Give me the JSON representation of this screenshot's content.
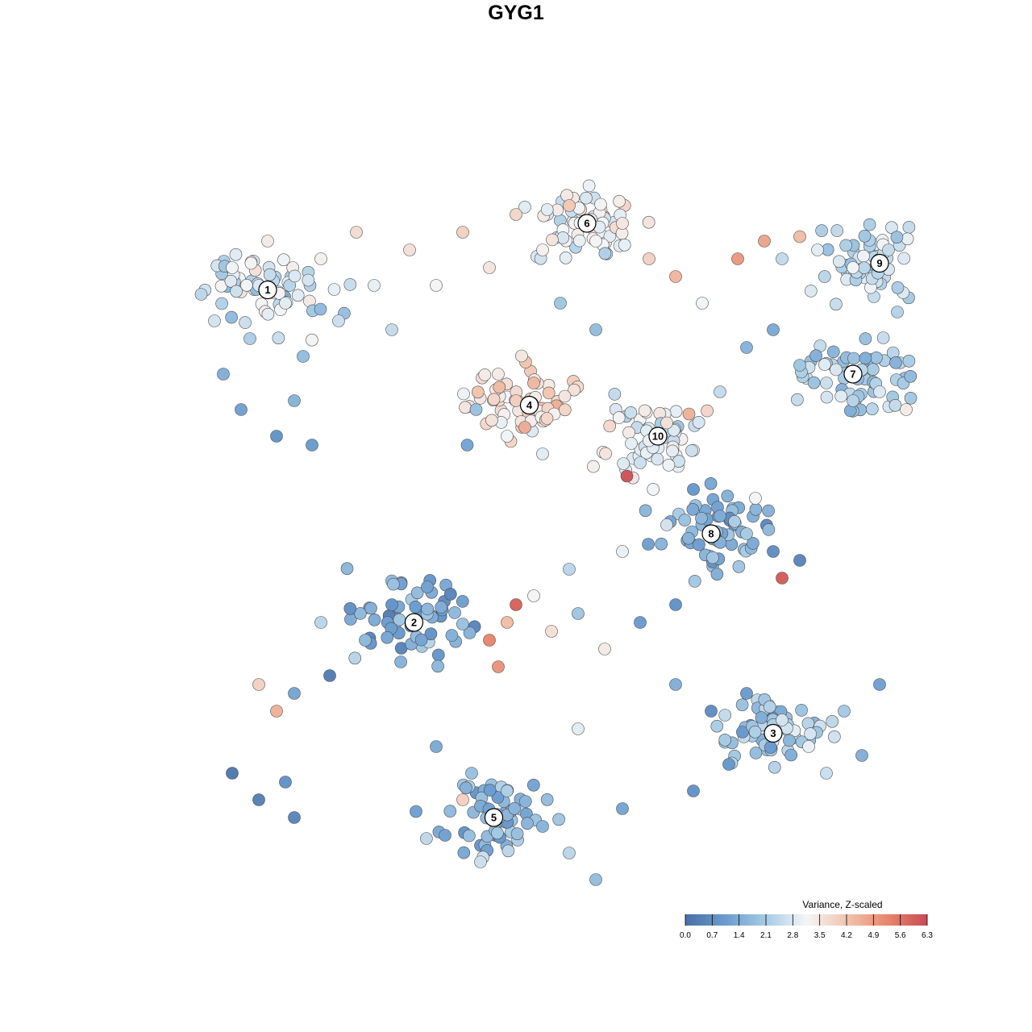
{
  "chart_data": {
    "type": "scatter",
    "title": "GYG1",
    "subtitle": "",
    "xlabel": "",
    "ylabel": "",
    "grid": false,
    "legend": {
      "title": "Variance, Z-scaled",
      "placement": "bottom-right",
      "ticks": [
        "0.0",
        "0.7",
        "1.4",
        "2.1",
        "2.8",
        "3.5",
        "4.2",
        "4.9",
        "5.6",
        "6.3"
      ],
      "range": [
        0.0,
        6.3
      ],
      "colors": [
        "#4a6fa5",
        "#6b9ccf",
        "#a7cbe4",
        "#f4f6f8",
        "#f2c4ae",
        "#e8876f",
        "#c94a55"
      ]
    },
    "clusters": [
      {
        "label": "1",
        "x": -2.8,
        "y": 2.55,
        "mean": 2.6
      },
      {
        "label": "2",
        "x": -1.15,
        "y": -1.2,
        "mean": 1.4
      },
      {
        "label": "3",
        "x": 2.9,
        "y": -2.45,
        "mean": 2.0
      },
      {
        "label": "4",
        "x": 0.15,
        "y": 1.25,
        "mean": 3.6
      },
      {
        "label": "5",
        "x": -0.25,
        "y": -3.4,
        "mean": 1.7
      },
      {
        "label": "6",
        "x": 0.8,
        "y": 3.3,
        "mean": 3.0
      },
      {
        "label": "7",
        "x": 3.8,
        "y": 1.6,
        "mean": 2.2
      },
      {
        "label": "8",
        "x": 2.2,
        "y": -0.2,
        "mean": 1.6
      },
      {
        "label": "9",
        "x": 4.1,
        "y": 2.85,
        "mean": 2.4
      },
      {
        "label": "10",
        "x": 1.6,
        "y": 0.9,
        "mean": 2.9
      }
    ],
    "points": [
      {
        "x": -3.55,
        "y": 2.5,
        "v": 2.4
      },
      {
        "x": -3.4,
        "y": 2.2,
        "v": 2.7
      },
      {
        "x": -3.2,
        "y": 2.8,
        "v": 3.1
      },
      {
        "x": -3.0,
        "y": 2.0,
        "v": 2.2
      },
      {
        "x": -2.8,
        "y": 3.1,
        "v": 3.4
      },
      {
        "x": -2.6,
        "y": 2.4,
        "v": 2.9
      },
      {
        "x": -2.4,
        "y": 1.8,
        "v": 1.8
      },
      {
        "x": -2.2,
        "y": 2.9,
        "v": 3.3
      },
      {
        "x": -2.0,
        "y": 2.2,
        "v": 2.6
      },
      {
        "x": -1.8,
        "y": 3.2,
        "v": 3.7
      },
      {
        "x": -1.6,
        "y": 2.6,
        "v": 3.0
      },
      {
        "x": -3.3,
        "y": 1.6,
        "v": 1.5
      },
      {
        "x": -3.1,
        "y": 1.2,
        "v": 1.2
      },
      {
        "x": -2.7,
        "y": 0.9,
        "v": 0.9
      },
      {
        "x": -2.5,
        "y": 1.3,
        "v": 1.6
      },
      {
        "x": -2.3,
        "y": 0.8,
        "v": 1.1
      },
      {
        "x": -2.9,
        "y": 2.6,
        "v": 2.8
      },
      {
        "x": -1.4,
        "y": 2.1,
        "v": 2.5
      },
      {
        "x": -1.2,
        "y": 3.0,
        "v": 3.6
      },
      {
        "x": -0.9,
        "y": 2.6,
        "v": 3.2
      },
      {
        "x": -0.6,
        "y": 3.2,
        "v": 3.9
      },
      {
        "x": -0.3,
        "y": 2.8,
        "v": 3.5
      },
      {
        "x": 0.0,
        "y": 3.4,
        "v": 3.8
      },
      {
        "x": 0.3,
        "y": 3.0,
        "v": 3.3
      },
      {
        "x": 0.6,
        "y": 3.5,
        "v": 4.1
      },
      {
        "x": 0.9,
        "y": 3.1,
        "v": 3.2
      },
      {
        "x": 1.2,
        "y": 3.3,
        "v": 3.5
      },
      {
        "x": 1.5,
        "y": 2.9,
        "v": 3.9
      },
      {
        "x": 1.8,
        "y": 2.7,
        "v": 4.4
      },
      {
        "x": 2.1,
        "y": 2.4,
        "v": 3.1
      },
      {
        "x": 0.5,
        "y": 2.4,
        "v": 2.0
      },
      {
        "x": 0.9,
        "y": 2.1,
        "v": 1.8
      },
      {
        "x": -0.2,
        "y": 1.6,
        "v": 3.4
      },
      {
        "x": 0.0,
        "y": 1.3,
        "v": 4.0
      },
      {
        "x": 0.2,
        "y": 1.5,
        "v": 4.4
      },
      {
        "x": 0.35,
        "y": 1.1,
        "v": 3.8
      },
      {
        "x": -0.1,
        "y": 0.9,
        "v": 3.1
      },
      {
        "x": 0.3,
        "y": 0.7,
        "v": 2.9
      },
      {
        "x": -0.45,
        "y": 1.2,
        "v": 1.9
      },
      {
        "x": -0.55,
        "y": 0.8,
        "v": 1.3
      },
      {
        "x": 0.55,
        "y": 1.35,
        "v": 3.5
      },
      {
        "x": 0.1,
        "y": 1.0,
        "v": 4.6
      },
      {
        "x": 1.5,
        "y": 0.85,
        "v": 3.0
      },
      {
        "x": 1.7,
        "y": 1.05,
        "v": 3.6
      },
      {
        "x": 1.4,
        "y": 0.6,
        "v": 2.6
      },
      {
        "x": 1.25,
        "y": 0.45,
        "v": 6.1
      },
      {
        "x": 1.95,
        "y": 1.15,
        "v": 4.5
      },
      {
        "x": 2.3,
        "y": 1.4,
        "v": 2.5
      },
      {
        "x": 2.6,
        "y": 1.9,
        "v": 1.6
      },
      {
        "x": 2.9,
        "y": 2.1,
        "v": 1.4
      },
      {
        "x": 3.2,
        "y": 1.7,
        "v": 2.0
      },
      {
        "x": 3.5,
        "y": 1.5,
        "v": 2.6
      },
      {
        "x": 3.8,
        "y": 1.3,
        "v": 2.3
      },
      {
        "x": 4.1,
        "y": 1.4,
        "v": 2.8
      },
      {
        "x": 4.4,
        "y": 1.2,
        "v": 3.4
      },
      {
        "x": 4.6,
        "y": 1.0,
        "v": 4.0
      },
      {
        "x": 3.0,
        "y": 2.9,
        "v": 2.5
      },
      {
        "x": 3.4,
        "y": 3.0,
        "v": 2.9
      },
      {
        "x": 3.8,
        "y": 2.8,
        "v": 3.1
      },
      {
        "x": 4.2,
        "y": 3.0,
        "v": 2.5
      },
      {
        "x": 4.5,
        "y": 2.7,
        "v": 2.1
      },
      {
        "x": 4.3,
        "y": 2.3,
        "v": 2.3
      },
      {
        "x": 2.8,
        "y": 3.1,
        "v": 4.7
      },
      {
        "x": 2.5,
        "y": 2.9,
        "v": 4.9
      },
      {
        "x": 3.2,
        "y": 3.15,
        "v": 4.3
      },
      {
        "x": 2.0,
        "y": 0.3,
        "v": 1.0
      },
      {
        "x": 2.3,
        "y": 0.0,
        "v": 1.4
      },
      {
        "x": 2.6,
        "y": -0.2,
        "v": 2.1
      },
      {
        "x": 2.9,
        "y": -0.4,
        "v": 0.8
      },
      {
        "x": 3.2,
        "y": -0.5,
        "v": 0.6
      },
      {
        "x": 3.0,
        "y": -0.7,
        "v": 5.9
      },
      {
        "x": 2.7,
        "y": 0.2,
        "v": 3.2
      },
      {
        "x": 1.7,
        "y": -0.1,
        "v": 2.7
      },
      {
        "x": 1.2,
        "y": -0.4,
        "v": 3.0
      },
      {
        "x": 0.6,
        "y": -0.6,
        "v": 2.4
      },
      {
        "x": 0.2,
        "y": -0.9,
        "v": 3.2
      },
      {
        "x": -0.1,
        "y": -1.2,
        "v": 4.3
      },
      {
        "x": 0.0,
        "y": -1.0,
        "v": 5.8
      },
      {
        "x": -0.3,
        "y": -1.4,
        "v": 5.2
      },
      {
        "x": -0.2,
        "y": -1.7,
        "v": 5.0
      },
      {
        "x": 0.4,
        "y": -1.3,
        "v": 3.6
      },
      {
        "x": 0.7,
        "y": -1.1,
        "v": 2.0
      },
      {
        "x": 1.0,
        "y": -1.5,
        "v": 3.4
      },
      {
        "x": 1.4,
        "y": -1.2,
        "v": 1.1
      },
      {
        "x": 1.8,
        "y": -1.0,
        "v": 0.9
      },
      {
        "x": -1.4,
        "y": -1.0,
        "v": 0.9
      },
      {
        "x": -1.7,
        "y": -1.4,
        "v": 1.7
      },
      {
        "x": -2.1,
        "y": -1.8,
        "v": 0.4
      },
      {
        "x": -2.5,
        "y": -2.0,
        "v": 1.3
      },
      {
        "x": -2.9,
        "y": -1.9,
        "v": 3.9
      },
      {
        "x": -2.7,
        "y": -2.2,
        "v": 4.5
      },
      {
        "x": -1.0,
        "y": -0.8,
        "v": 1.2
      },
      {
        "x": -2.2,
        "y": -1.2,
        "v": 2.4
      },
      {
        "x": -3.2,
        "y": -2.9,
        "v": 0.3
      },
      {
        "x": -2.9,
        "y": -3.2,
        "v": 0.5
      },
      {
        "x": -2.6,
        "y": -3.0,
        "v": 0.9
      },
      {
        "x": -2.5,
        "y": -3.4,
        "v": 0.6
      },
      {
        "x": 1.8,
        "y": -1.9,
        "v": 1.5
      },
      {
        "x": 2.2,
        "y": -2.2,
        "v": 0.8
      },
      {
        "x": 2.6,
        "y": -2.0,
        "v": 1.1
      },
      {
        "x": 3.0,
        "y": -2.3,
        "v": 2.7
      },
      {
        "x": 3.3,
        "y": -2.6,
        "v": 3.0
      },
      {
        "x": 3.7,
        "y": -2.2,
        "v": 2.1
      },
      {
        "x": 4.1,
        "y": -1.9,
        "v": 1.2
      },
      {
        "x": 3.9,
        "y": -2.7,
        "v": 1.5
      },
      {
        "x": 3.5,
        "y": -2.9,
        "v": 2.6
      },
      {
        "x": 2.4,
        "y": -2.8,
        "v": 1.0
      },
      {
        "x": 2.0,
        "y": -3.1,
        "v": 0.9
      },
      {
        "x": -0.9,
        "y": -2.6,
        "v": 1.4
      },
      {
        "x": -0.5,
        "y": -2.9,
        "v": 1.9
      },
      {
        "x": -0.1,
        "y": -3.1,
        "v": 2.2
      },
      {
        "x": 0.3,
        "y": -3.5,
        "v": 1.6
      },
      {
        "x": 0.6,
        "y": -3.8,
        "v": 2.4
      },
      {
        "x": 0.9,
        "y": -4.1,
        "v": 1.8
      },
      {
        "x": -0.4,
        "y": -3.9,
        "v": 2.6
      },
      {
        "x": -0.8,
        "y": -3.6,
        "v": 1.2
      },
      {
        "x": 0.2,
        "y": -4.3,
        "v": 2.0
      },
      {
        "x": 1.2,
        "y": -3.3,
        "v": 1.3
      },
      {
        "x": -0.6,
        "y": -3.2,
        "v": 3.9
      },
      {
        "x": 0.7,
        "y": -2.4,
        "v": 2.9
      }
    ]
  }
}
